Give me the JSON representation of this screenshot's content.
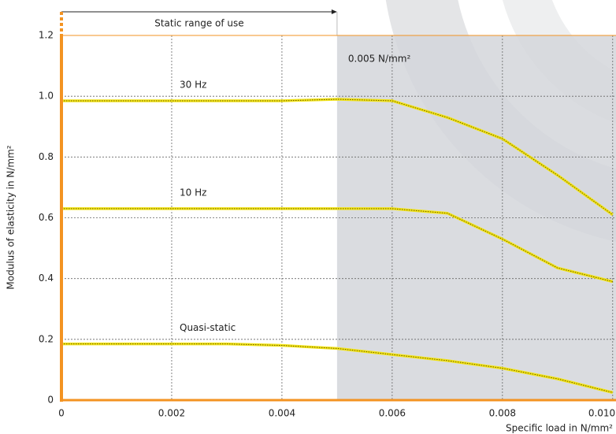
{
  "chart_data": {
    "type": "line",
    "y_label": "Modulus of elasticity in N/mm²",
    "x_label": "Specific load in N/mm²",
    "range_label": "Static range of use",
    "threshold_label": "0.005 N/mm²",
    "static_range": [
      0,
      0.005
    ],
    "x": [
      0,
      0.001,
      0.002,
      0.003,
      0.004,
      0.005,
      0.006,
      0.007,
      0.008,
      0.009,
      0.01
    ],
    "series": [
      {
        "name": "30 Hz",
        "color": "#f2e418",
        "values": [
          0.985,
          0.985,
          0.985,
          0.985,
          0.985,
          0.99,
          0.985,
          0.93,
          0.86,
          0.74,
          0.61
        ]
      },
      {
        "name": "10 Hz",
        "color": "#f2e418",
        "values": [
          0.63,
          0.63,
          0.63,
          0.63,
          0.63,
          0.63,
          0.63,
          0.615,
          0.53,
          0.435,
          0.39
        ]
      },
      {
        "name": "Quasi-static",
        "color": "#f2e418",
        "values": [
          0.185,
          0.185,
          0.185,
          0.185,
          0.18,
          0.17,
          0.15,
          0.13,
          0.105,
          0.07,
          0.025
        ]
      }
    ],
    "xlim": [
      0,
      0.01006
    ],
    "ylim": [
      0,
      1.2
    ],
    "xticks": [
      0,
      0.002,
      0.004,
      0.006,
      0.008,
      {
        "value": 0.01,
        "label": "0.010"
      }
    ],
    "yticks": [
      0,
      0.2,
      0.4,
      0.6,
      0.8,
      {
        "value": 1,
        "label": "1.0"
      },
      1.2
    ],
    "grid": true,
    "axis_color": "#f39322",
    "shade_color": "#d3d6da"
  }
}
